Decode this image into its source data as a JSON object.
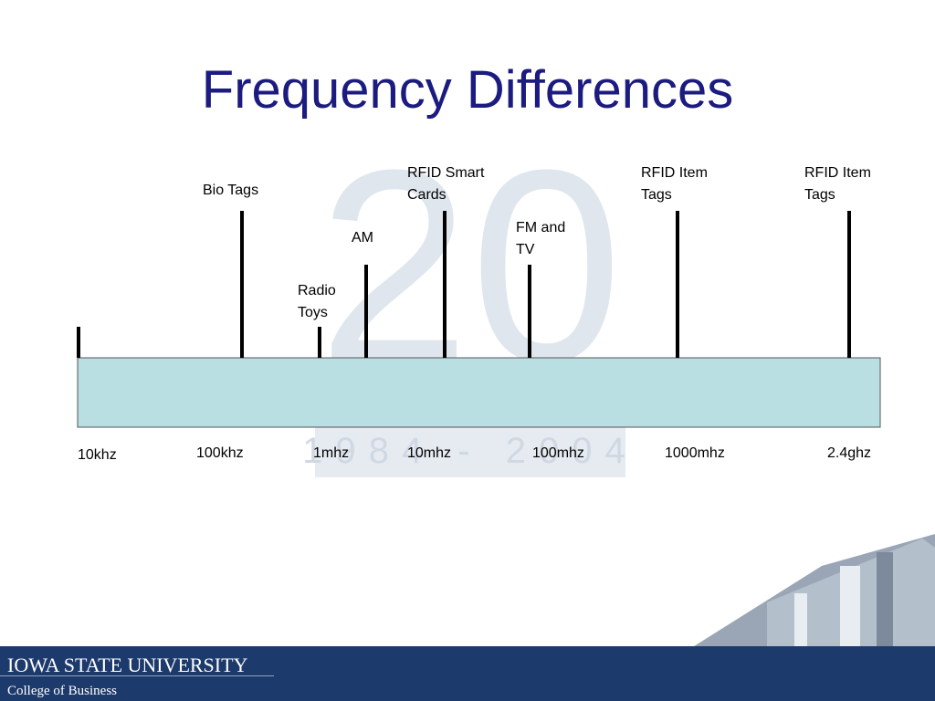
{
  "title": "Frequency Differences",
  "watermark": {
    "number": "20",
    "years": "1984 - 2004"
  },
  "scale": [
    "10khz",
    "100khz",
    "1mhz",
    "10mhz",
    "100mhz",
    "1000mhz",
    "2.4ghz"
  ],
  "markers": [
    {
      "label": [
        "Bio Tags"
      ]
    },
    {
      "label": [
        "Radio",
        "Toys"
      ]
    },
    {
      "label": [
        "AM"
      ]
    },
    {
      "label": [
        "RFID Smart",
        "Cards"
      ]
    },
    {
      "label": [
        "FM and",
        "TV"
      ]
    },
    {
      "label": [
        "RFID Item",
        "Tags"
      ]
    },
    {
      "label": [
        "RFID Item",
        "Tags"
      ]
    }
  ],
  "footer": {
    "university": "IOWA STATE UNIVERSITY",
    "college": "College of Business"
  }
}
